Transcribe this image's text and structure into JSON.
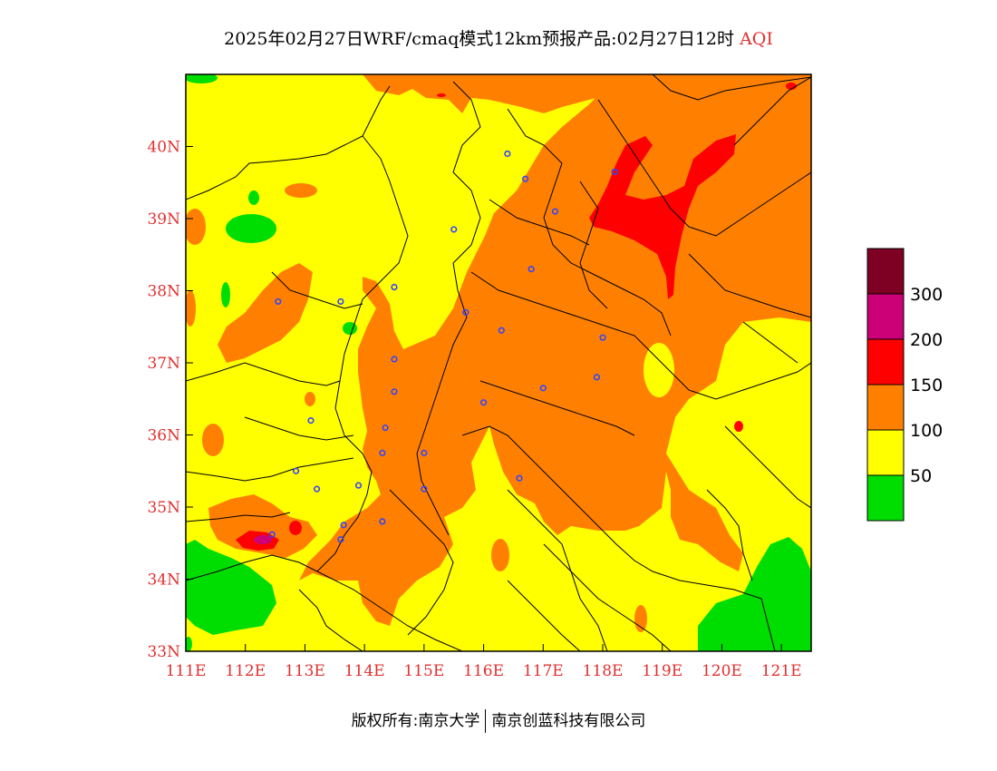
{
  "title": {
    "main": "2025年02月27日WRF/cmaq模式12km预报产品:02月27日12时",
    "variable": "AQI"
  },
  "footer": {
    "left": "版权所有:南京大学",
    "right": "南京创蓝科技有限公司"
  },
  "map": {
    "lon_range": [
      111,
      121.5
    ],
    "lat_range": [
      33,
      41
    ],
    "x_ticks": [
      "111E",
      "112E",
      "113E",
      "114E",
      "115E",
      "116E",
      "117E",
      "118E",
      "119E",
      "120E",
      "121E"
    ],
    "y_ticks": [
      "33N",
      "34N",
      "35N",
      "36N",
      "37N",
      "38N",
      "39N",
      "40N"
    ],
    "colors": {
      "good": "#00dd00",
      "moderate": "#ffff00",
      "usg": "#ff8000",
      "unhealthy": "#ff0000",
      "very_unhealthy": "#cc0077",
      "hazardous": "#7e0023",
      "boundary": "#000000",
      "city_marker": "#3344ff"
    }
  },
  "legend": {
    "labels": [
      "50",
      "100",
      "150",
      "200",
      "300"
    ],
    "colors": [
      "#00dd00",
      "#ffff00",
      "#ff8000",
      "#ff0000",
      "#cc0077",
      "#7e0023"
    ]
  },
  "cities": [
    {
      "lon": 117.2,
      "lat": 39.1
    },
    {
      "lon": 116.4,
      "lat": 39.9
    },
    {
      "lon": 115.5,
      "lat": 38.85
    },
    {
      "lon": 114.5,
      "lat": 38.05
    },
    {
      "lon": 113.6,
      "lat": 37.85
    },
    {
      "lon": 112.55,
      "lat": 37.85
    },
    {
      "lon": 115.7,
      "lat": 37.7
    },
    {
      "lon": 116.3,
      "lat": 37.45
    },
    {
      "lon": 114.5,
      "lat": 37.05
    },
    {
      "lon": 114.5,
      "lat": 36.6
    },
    {
      "lon": 114.35,
      "lat": 36.1
    },
    {
      "lon": 113.1,
      "lat": 36.2
    },
    {
      "lon": 114.3,
      "lat": 35.75
    },
    {
      "lon": 115.0,
      "lat": 35.75
    },
    {
      "lon": 116.0,
      "lat": 36.45
    },
    {
      "lon": 117.0,
      "lat": 36.65
    },
    {
      "lon": 117.9,
      "lat": 36.8
    },
    {
      "lon": 118.0,
      "lat": 37.35
    },
    {
      "lon": 116.8,
      "lat": 38.3
    },
    {
      "lon": 116.7,
      "lat": 39.55
    },
    {
      "lon": 118.2,
      "lat": 39.65
    },
    {
      "lon": 112.85,
      "lat": 35.5
    },
    {
      "lon": 113.2,
      "lat": 35.25
    },
    {
      "lon": 113.9,
      "lat": 35.3
    },
    {
      "lon": 115.0,
      "lat": 35.25
    },
    {
      "lon": 116.6,
      "lat": 35.4
    },
    {
      "lon": 114.3,
      "lat": 34.8
    },
    {
      "lon": 113.65,
      "lat": 34.75
    },
    {
      "lon": 113.6,
      "lat": 34.55
    },
    {
      "lon": 112.45,
      "lat": 34.62
    }
  ]
}
